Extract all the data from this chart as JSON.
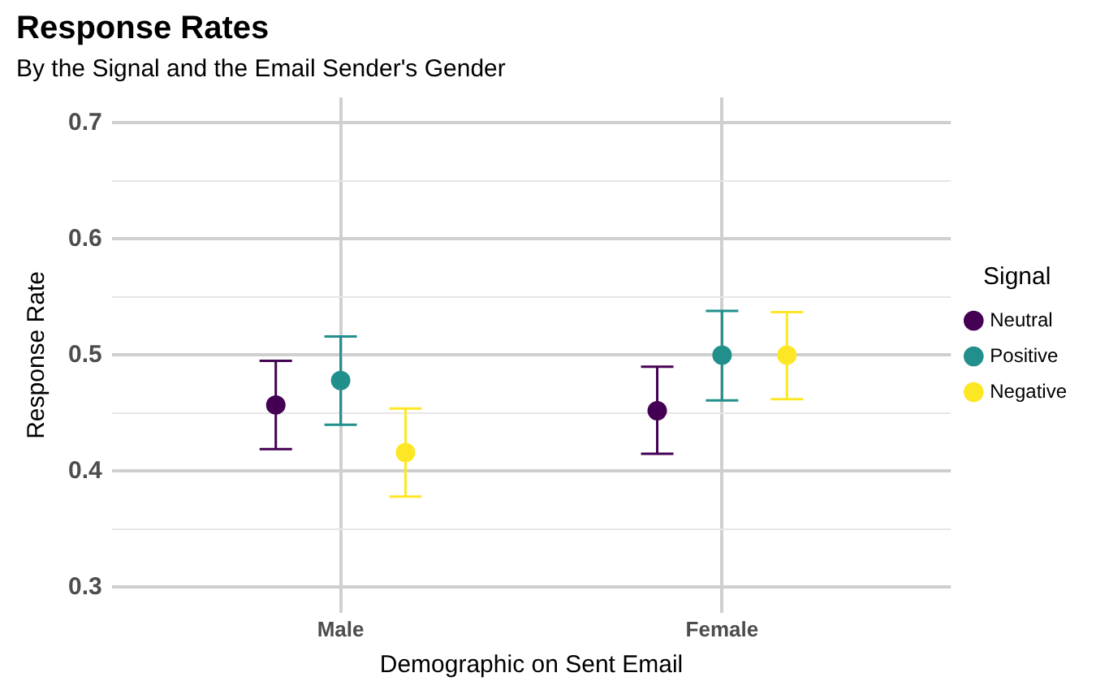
{
  "chart_data": {
    "type": "scatter",
    "title": "Response Rates",
    "subtitle": "By the Signal and the Email Sender's Gender",
    "xlabel": "Demographic on Sent Email",
    "ylabel": "Response Rate",
    "legend_title": "Signal",
    "categories": [
      "Male",
      "Female"
    ],
    "series": [
      {
        "name": "Neutral",
        "color": "#440154",
        "values": [
          0.457,
          0.452
        ],
        "errors": [
          [
            0.419,
            0.495
          ],
          [
            0.415,
            0.49
          ]
        ]
      },
      {
        "name": "Positive",
        "color": "#21908c",
        "values": [
          0.478,
          0.5
        ],
        "errors": [
          [
            0.44,
            0.516
          ],
          [
            0.461,
            0.538
          ]
        ]
      },
      {
        "name": "Negative",
        "color": "#fde725",
        "values": [
          0.416,
          0.5
        ],
        "errors": [
          [
            0.378,
            0.454
          ],
          [
            0.462,
            0.537
          ]
        ]
      }
    ],
    "ylim": [
      0.278,
      0.722
    ],
    "yticks": [
      0.3,
      {
        "value": 0.35,
        "label": null
      },
      0.4,
      {
        "value": 0.45,
        "label": null
      },
      0.5,
      {
        "value": 0.55,
        "label": null
      },
      0.6,
      {
        "value": 0.65,
        "label": null
      },
      0.7
    ],
    "grid": true,
    "legend": "right",
    "marker": "circle"
  }
}
